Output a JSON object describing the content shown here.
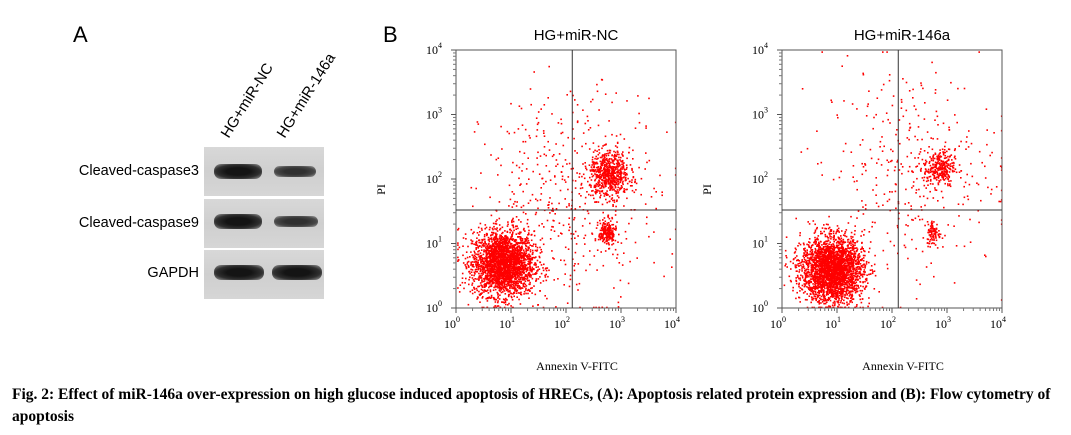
{
  "panel_a": {
    "letter": "A",
    "lanes": [
      "HG+miR-NC",
      "HG+miR-146a"
    ],
    "rows": [
      {
        "label": "Cleaved-caspase3",
        "intensity": [
          1.0,
          0.6
        ]
      },
      {
        "label": "Cleaved-caspase9",
        "intensity": [
          1.0,
          0.6
        ]
      },
      {
        "label": "GAPDH",
        "intensity": [
          1.0,
          1.0
        ]
      }
    ]
  },
  "panel_b": {
    "letter": "B",
    "plots": [
      {
        "title": "HG+miR-NC",
        "xlabel": "Annexin V-FITC",
        "ylabel": "PI"
      },
      {
        "title": "HG+miR-146a",
        "xlabel": "Annexin V-FITC",
        "ylabel": "PI"
      }
    ]
  },
  "chart_data": [
    {
      "type": "scatter",
      "title": "HG+miR-NC",
      "xlabel": "Annexin V-FITC",
      "ylabel": "PI",
      "xscale": "log",
      "yscale": "log",
      "xlim": [
        1,
        10000
      ],
      "ylim": [
        1,
        10000
      ],
      "x_ticks": [
        "10^0",
        "10^1",
        "10^2",
        "10^3",
        "10^4"
      ],
      "y_ticks": [
        "10^0",
        "10^1",
        "10^2",
        "10^3",
        "10^4"
      ],
      "gate": {
        "x": 130,
        "y": 33
      },
      "point_color": "#ff0000",
      "clusters": [
        {
          "center": [
            7,
            5
          ],
          "spread_log": [
            0.28,
            0.25
          ],
          "count": 2600
        },
        {
          "center": [
            600,
            120
          ],
          "spread_log": [
            0.18,
            0.18
          ],
          "count": 650
        },
        {
          "center": [
            550,
            15
          ],
          "spread_log": [
            0.08,
            0.1
          ],
          "count": 220
        },
        {
          "center": [
            120,
            60
          ],
          "spread_log": [
            0.8,
            0.8
          ],
          "count": 450
        }
      ]
    },
    {
      "type": "scatter",
      "title": "HG+miR-146a",
      "xlabel": "Annexin V-FITC",
      "ylabel": "PI",
      "xscale": "log",
      "yscale": "log",
      "xlim": [
        1,
        10000
      ],
      "ylim": [
        1,
        10000
      ],
      "x_ticks": [
        "10^0",
        "10^1",
        "10^2",
        "10^3",
        "10^4"
      ],
      "y_ticks": [
        "10^0",
        "10^1",
        "10^2",
        "10^3",
        "10^4"
      ],
      "gate": {
        "x": 130,
        "y": 33
      },
      "point_color": "#ff0000",
      "clusters": [
        {
          "center": [
            8,
            4
          ],
          "spread_log": [
            0.28,
            0.25
          ],
          "count": 2800
        },
        {
          "center": [
            700,
            150
          ],
          "spread_log": [
            0.14,
            0.14
          ],
          "count": 280
        },
        {
          "center": [
            550,
            15
          ],
          "spread_log": [
            0.06,
            0.1
          ],
          "count": 90
        },
        {
          "center": [
            200,
            150
          ],
          "spread_log": [
            0.8,
            0.8
          ],
          "count": 350
        }
      ]
    }
  ],
  "caption": "Fig. 2: Effect of miR-146a over-expression on high glucose induced apoptosis of HRECs, (A): Apoptosis related protein expression and (B): Flow cytometry of apoptosis"
}
